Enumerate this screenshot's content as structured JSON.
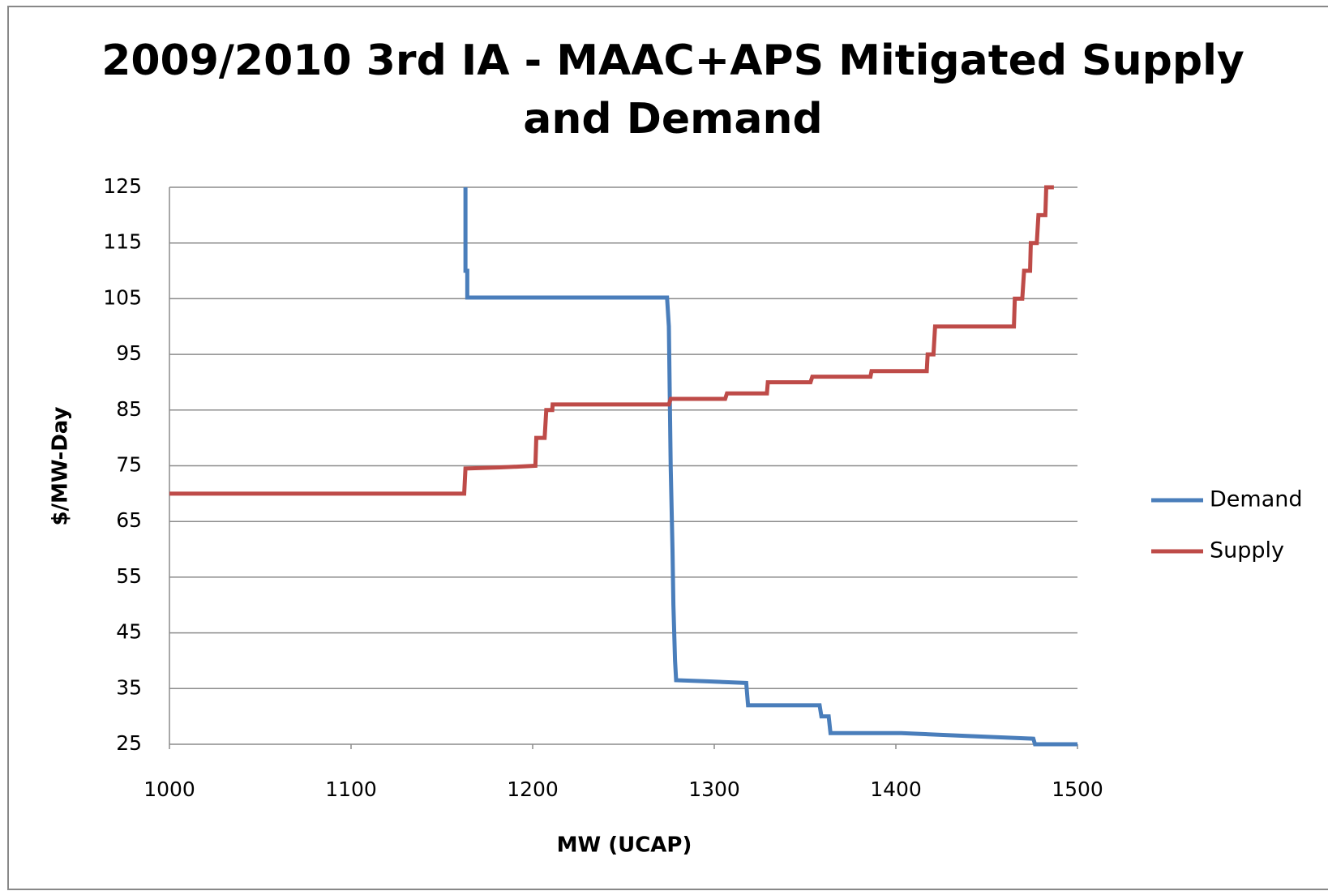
{
  "chart_data": {
    "type": "line",
    "title": "2009/2010 3rd IA - MAAC+APS Mitigated Supply",
    "subtitle": "and Demand",
    "xlabel": "MW (UCAP)",
    "ylabel": "$/MW-Day",
    "xlim": [
      1000,
      1500
    ],
    "xticks": [
      1000,
      1100,
      1200,
      1300,
      1400,
      1500
    ],
    "ylim": [
      25,
      125
    ],
    "yticks": [
      25,
      35,
      45,
      55,
      65,
      75,
      85,
      95,
      105,
      115,
      125
    ],
    "grid": true,
    "legend": "right",
    "series": [
      {
        "name": "Demand",
        "color": "#4a7ebb",
        "x": [
          1163,
          1163,
          1164,
          1164,
          1274,
          1275,
          1276,
          1277,
          1277.5,
          1278.4,
          1279,
          1296,
          1317.6,
          1318.6,
          1358,
          1359,
          1363,
          1364,
          1403,
          1439,
          1475.7,
          1476.6,
          1500
        ],
        "values": [
          125,
          110,
          110,
          105.2,
          105.2,
          100,
          75,
          60,
          50,
          40,
          36.5,
          36.3,
          36,
          32,
          32,
          30,
          30,
          27,
          27,
          26.5,
          26,
          25,
          25
        ]
      },
      {
        "name": "Supply",
        "color": "#be4b48",
        "x": [
          1000,
          1162.3,
          1163,
          1182,
          1201.5,
          1202,
          1206.6,
          1207.5,
          1210.8,
          1211,
          1275,
          1276,
          1306,
          1307,
          1329,
          1329.5,
          1353,
          1354,
          1386,
          1386.6,
          1417,
          1417.5,
          1420.7,
          1421.6,
          1465,
          1465.5,
          1469.6,
          1470.6,
          1473.9,
          1474.3,
          1477.6,
          1478.5,
          1482.3,
          1482.8,
          1487
        ],
        "values": [
          70,
          70,
          74.5,
          74.7,
          75,
          80,
          80,
          85,
          85,
          86,
          86,
          87,
          87,
          88,
          88,
          90,
          90,
          91,
          91,
          92,
          92,
          95,
          95,
          100,
          100,
          105,
          105,
          110,
          110,
          115,
          115,
          120,
          120,
          125,
          125
        ]
      }
    ]
  }
}
